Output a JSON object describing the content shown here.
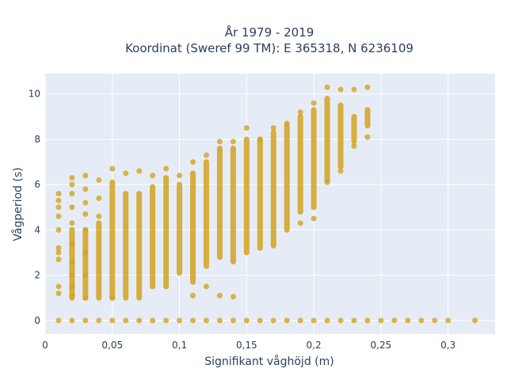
{
  "chart_data": {
    "type": "scatter",
    "title_line1": "År 1979 - 2019",
    "title_line2": "Koordinat (Sweref 99 TM): E 365318, N 6236109",
    "xlabel": "Signifikant våghöjd (m)",
    "ylabel": "Vågperiod (s)",
    "xlim": [
      0,
      0.335
    ],
    "ylim": [
      -0.6,
      10.9
    ],
    "grid": true,
    "legend": "none",
    "colors": {
      "points": "#d4a21e",
      "plot_bg": "#e5ecf6",
      "grid": "#ffffff",
      "text": "#2a3f5f"
    },
    "x_ticks": [
      0,
      0.05,
      0.1,
      0.15,
      0.2,
      0.25,
      0.3
    ],
    "x_tick_labels": [
      "0",
      "0,05",
      "0,1",
      "0,15",
      "0,2",
      "0,25",
      "0,3"
    ],
    "y_ticks": [
      0,
      2,
      4,
      6,
      8,
      10
    ],
    "y_tick_labels": [
      "0",
      "2",
      "4",
      "6",
      "8",
      "10"
    ],
    "series": [
      {
        "points": [
          [
            0.01,
            0
          ],
          [
            0.02,
            0
          ],
          [
            0.03,
            0
          ],
          [
            0.04,
            0
          ],
          [
            0.05,
            0
          ],
          [
            0.06,
            0
          ],
          [
            0.07,
            0
          ],
          [
            0.08,
            0
          ],
          [
            0.09,
            0
          ],
          [
            0.1,
            0
          ],
          [
            0.11,
            0
          ],
          [
            0.12,
            0
          ],
          [
            0.13,
            0
          ],
          [
            0.14,
            0
          ],
          [
            0.15,
            0
          ],
          [
            0.16,
            0
          ],
          [
            0.17,
            0
          ],
          [
            0.18,
            0
          ],
          [
            0.19,
            0
          ],
          [
            0.2,
            0
          ],
          [
            0.21,
            0
          ],
          [
            0.22,
            0
          ],
          [
            0.23,
            0
          ],
          [
            0.24,
            0
          ],
          [
            0.25,
            0
          ],
          [
            0.26,
            0
          ],
          [
            0.27,
            0
          ],
          [
            0.28,
            0
          ],
          [
            0.29,
            0
          ],
          [
            0.3,
            0
          ],
          [
            0.32,
            0
          ],
          [
            0.01,
            1.2
          ],
          [
            0.01,
            1.5
          ],
          [
            0.01,
            2.7
          ],
          [
            0.01,
            3.0
          ],
          [
            0.01,
            3.2
          ],
          [
            0.01,
            4.0
          ],
          [
            0.01,
            4.6
          ],
          [
            0.01,
            5.0
          ],
          [
            0.01,
            5.3
          ],
          [
            0.01,
            5.6
          ],
          [
            0.02,
            1.1
          ],
          [
            0.02,
            1.5
          ],
          [
            0.02,
            2.0
          ],
          [
            0.02,
            2.6
          ],
          [
            0.02,
            3.4
          ],
          [
            0.02,
            4.3
          ],
          [
            0.02,
            5.0
          ],
          [
            0.02,
            5.6
          ],
          [
            0.02,
            6.0
          ],
          [
            0.02,
            6.3
          ],
          [
            0.03,
            1.0
          ],
          [
            0.03,
            2.0
          ],
          [
            0.03,
            3.0
          ],
          [
            0.03,
            4.0
          ],
          [
            0.03,
            4.7
          ],
          [
            0.03,
            5.2
          ],
          [
            0.03,
            5.8
          ],
          [
            0.03,
            6.4
          ],
          [
            0.04,
            6.2
          ],
          [
            0.04,
            5.4
          ],
          [
            0.04,
            4.6
          ],
          [
            0.05,
            1.0
          ],
          [
            0.05,
            6.7
          ],
          [
            0.06,
            6.5
          ],
          [
            0.07,
            6.6
          ],
          [
            0.08,
            6.4
          ],
          [
            0.09,
            6.7
          ],
          [
            0.1,
            6.4
          ],
          [
            0.11,
            1.1
          ],
          [
            0.11,
            7.0
          ],
          [
            0.12,
            1.5
          ],
          [
            0.12,
            7.3
          ],
          [
            0.13,
            1.1
          ],
          [
            0.13,
            7.9
          ],
          [
            0.14,
            1.05
          ],
          [
            0.14,
            7.9
          ],
          [
            0.15,
            8.5
          ],
          [
            0.16,
            8.0
          ],
          [
            0.17,
            8.5
          ],
          [
            0.18,
            8.7
          ],
          [
            0.19,
            9.2
          ],
          [
            0.19,
            4.3
          ],
          [
            0.2,
            9.6
          ],
          [
            0.2,
            4.5
          ],
          [
            0.21,
            10.3
          ],
          [
            0.21,
            6.1
          ],
          [
            0.22,
            10.2
          ],
          [
            0.22,
            6.6
          ],
          [
            0.23,
            10.2
          ],
          [
            0.23,
            7.7
          ],
          [
            0.24,
            10.3
          ],
          [
            0.24,
            8.1
          ]
        ],
        "columns": [
          {
            "x": 0.02,
            "min": 1.0,
            "max": 4.0
          },
          {
            "x": 0.03,
            "min": 1.0,
            "max": 4.0
          },
          {
            "x": 0.04,
            "min": 1.0,
            "max": 4.3
          },
          {
            "x": 0.05,
            "min": 1.0,
            "max": 6.1
          },
          {
            "x": 0.06,
            "min": 1.0,
            "max": 5.6
          },
          {
            "x": 0.07,
            "min": 1.0,
            "max": 5.6
          },
          {
            "x": 0.08,
            "min": 1.5,
            "max": 5.9
          },
          {
            "x": 0.09,
            "min": 1.5,
            "max": 6.3
          },
          {
            "x": 0.1,
            "min": 2.1,
            "max": 6.0
          },
          {
            "x": 0.11,
            "min": 1.7,
            "max": 6.5
          },
          {
            "x": 0.12,
            "min": 2.4,
            "max": 7.0
          },
          {
            "x": 0.13,
            "min": 2.8,
            "max": 7.6
          },
          {
            "x": 0.14,
            "min": 2.6,
            "max": 7.6
          },
          {
            "x": 0.15,
            "min": 3.0,
            "max": 8.0
          },
          {
            "x": 0.16,
            "min": 3.2,
            "max": 8.0
          },
          {
            "x": 0.17,
            "min": 3.3,
            "max": 8.3
          },
          {
            "x": 0.18,
            "min": 4.0,
            "max": 8.6
          },
          {
            "x": 0.19,
            "min": 4.8,
            "max": 9.0
          },
          {
            "x": 0.2,
            "min": 5.0,
            "max": 9.3
          },
          {
            "x": 0.21,
            "min": 6.2,
            "max": 9.8
          },
          {
            "x": 0.22,
            "min": 6.8,
            "max": 9.5
          },
          {
            "x": 0.23,
            "min": 7.9,
            "max": 9.0
          },
          {
            "x": 0.24,
            "min": 8.6,
            "max": 9.3
          }
        ]
      }
    ]
  }
}
